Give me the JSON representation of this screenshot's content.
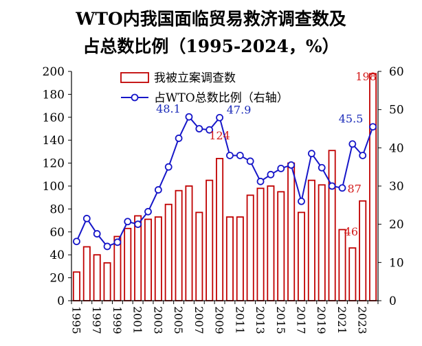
{
  "chart_data": {
    "type": "bar+line",
    "title_line1": "WTO内我国面临贸易救济调查数及",
    "title_line2": "占总数比例（1995-2024，%）",
    "years": [
      1995,
      1996,
      1997,
      1998,
      1999,
      2000,
      2001,
      2002,
      2003,
      2004,
      2005,
      2006,
      2007,
      2008,
      2009,
      2010,
      2011,
      2012,
      2013,
      2014,
      2015,
      2016,
      2017,
      2018,
      2019,
      2020,
      2021,
      2022,
      2023,
      2024
    ],
    "x_tick_labels": [
      "1995",
      "1997",
      "1999",
      "2001",
      "2003",
      "2005",
      "2007",
      "2009",
      "2011",
      "2013",
      "2015",
      "2017",
      "2019",
      "2021",
      "2023"
    ],
    "left_axis": {
      "min": 0,
      "max": 200,
      "ticks": [
        "0",
        "20",
        "40",
        "60",
        "80",
        "100",
        "120",
        "140",
        "160",
        "180",
        "200"
      ]
    },
    "right_axis": {
      "min": 0,
      "max": 60,
      "ticks": [
        "0",
        "10",
        "20",
        "30",
        "40",
        "50",
        "60"
      ]
    },
    "series": [
      {
        "name": "我被立案调查数",
        "kind": "bar",
        "axis": "left",
        "color": "#c00000",
        "values": [
          25,
          47,
          40,
          33,
          56,
          63,
          74,
          71,
          73,
          84,
          96,
          100,
          77,
          105,
          124,
          73,
          73,
          92,
          98,
          100,
          95,
          120,
          77,
          105,
          101,
          131,
          62,
          46,
          87,
          198
        ]
      },
      {
        "name": "占WTO总数比例（右轴）",
        "kind": "line",
        "axis": "right",
        "color": "#1616c8",
        "values": [
          15.5,
          21.5,
          17.5,
          14.2,
          15.3,
          20.7,
          20,
          23.3,
          29,
          35,
          42.5,
          48.1,
          45,
          44.7,
          47.9,
          38,
          38,
          36.5,
          31.2,
          33,
          34.6,
          35.5,
          26,
          38.5,
          34.8,
          30,
          29.5,
          41,
          38,
          45.5
        ]
      }
    ],
    "bar_labels": [
      {
        "index": 14,
        "text": "124"
      },
      {
        "index": 27,
        "text": "46"
      },
      {
        "index": 28,
        "text": "87"
      },
      {
        "index": 29,
        "text": "198"
      }
    ],
    "line_labels": [
      {
        "index": 11,
        "text": "48.1"
      },
      {
        "index": 14,
        "text": "47.9"
      },
      {
        "index": 29,
        "text": "45.5"
      }
    ],
    "legend_position": "top-center"
  }
}
